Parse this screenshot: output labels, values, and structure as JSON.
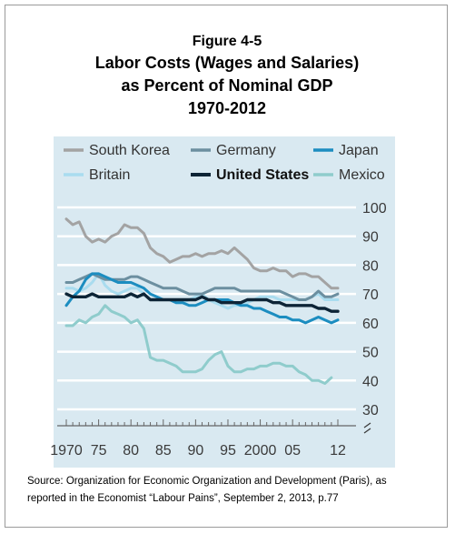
{
  "figure": {
    "number": "Figure 4-5",
    "title_line1": "Labor Costs (Wages and Salaries)",
    "title_line2": "as Percent of Nominal GDP",
    "title_line3": "1970-2012"
  },
  "source_note": {
    "line1": "Source: Organization for Economic Organization and Development (Paris), as",
    "line2": "reported in the Economist “Labour Pains”, September 2, 2013, p.77"
  },
  "colors": {
    "panel_bg": "#d9e9f1",
    "grid": "#ffffff",
    "axis_text": "#3a3a3a"
  },
  "chart_data": {
    "type": "line",
    "x_tick_labels": [
      "1970",
      "75",
      "80",
      "85",
      "90",
      "95",
      "2000",
      "05",
      "12"
    ],
    "x_tick_values": [
      1970,
      1975,
      1980,
      1985,
      1990,
      1995,
      2000,
      2005,
      2012
    ],
    "y_tick_labels": [
      "100",
      "90",
      "80",
      "70",
      "60",
      "50",
      "40",
      "30"
    ],
    "y_tick_values": [
      100,
      90,
      80,
      70,
      60,
      50,
      40,
      30
    ],
    "ylim": [
      30,
      100
    ],
    "xlim": [
      1970,
      2012
    ],
    "y_axis_break": true,
    "grid": "horizontal",
    "legend_position": "top",
    "series": [
      {
        "name": "South Korea",
        "color": "#a3a3a3",
        "bold": false,
        "x": [
          1970,
          1971,
          1972,
          1973,
          1974,
          1975,
          1976,
          1977,
          1978,
          1979,
          1980,
          1981,
          1982,
          1983,
          1984,
          1985,
          1986,
          1987,
          1988,
          1989,
          1990,
          1991,
          1992,
          1993,
          1994,
          1995,
          1996,
          1997,
          1998,
          1999,
          2000,
          2001,
          2002,
          2003,
          2004,
          2005,
          2006,
          2007,
          2008,
          2009,
          2010,
          2011,
          2012
        ],
        "y": [
          96,
          94,
          95,
          90,
          88,
          89,
          88,
          90,
          91,
          94,
          93,
          93,
          91,
          86,
          84,
          83,
          81,
          82,
          83,
          83,
          84,
          83,
          84,
          84,
          85,
          84,
          86,
          84,
          82,
          79,
          78,
          78,
          79,
          78,
          78,
          76,
          77,
          77,
          76,
          76,
          74,
          72,
          72
        ]
      },
      {
        "name": "Germany",
        "color": "#6c8fa0",
        "bold": false,
        "x": [
          1970,
          1971,
          1972,
          1973,
          1974,
          1975,
          1976,
          1977,
          1978,
          1979,
          1980,
          1981,
          1982,
          1983,
          1984,
          1985,
          1986,
          1987,
          1988,
          1989,
          1990,
          1991,
          1992,
          1993,
          1994,
          1995,
          1996,
          1997,
          1998,
          1999,
          2000,
          2001,
          2002,
          2003,
          2004,
          2005,
          2006,
          2007,
          2008,
          2009,
          2010,
          2011,
          2012
        ],
        "y": [
          74,
          74,
          75,
          76,
          77,
          76,
          75,
          75,
          75,
          75,
          76,
          76,
          75,
          74,
          73,
          72,
          72,
          72,
          71,
          70,
          70,
          70,
          71,
          72,
          72,
          72,
          72,
          71,
          71,
          71,
          71,
          71,
          71,
          71,
          70,
          69,
          68,
          68,
          69,
          71,
          69,
          69,
          70
        ]
      },
      {
        "name": "Japan",
        "color": "#1c8dc0",
        "bold": false,
        "x": [
          1970,
          1971,
          1972,
          1973,
          1974,
          1975,
          1976,
          1977,
          1978,
          1979,
          1980,
          1981,
          1982,
          1983,
          1984,
          1985,
          1986,
          1987,
          1988,
          1989,
          1990,
          1991,
          1992,
          1993,
          1994,
          1995,
          1996,
          1997,
          1998,
          1999,
          2000,
          2001,
          2002,
          2003,
          2004,
          2005,
          2006,
          2007,
          2008,
          2009,
          2010,
          2011,
          2012
        ],
        "y": [
          66,
          69,
          71,
          75,
          77,
          77,
          76,
          75,
          74,
          74,
          74,
          73,
          72,
          70,
          69,
          68,
          68,
          67,
          67,
          66,
          66,
          67,
          68,
          68,
          68,
          68,
          67,
          66,
          66,
          65,
          65,
          64,
          63,
          62,
          62,
          61,
          61,
          60,
          61,
          62,
          61,
          60,
          61
        ]
      },
      {
        "name": "Britain",
        "color": "#a9dcef",
        "bold": false,
        "x": [
          1970,
          1971,
          1972,
          1973,
          1974,
          1975,
          1976,
          1977,
          1978,
          1979,
          1980,
          1981,
          1982,
          1983,
          1984,
          1985,
          1986,
          1987,
          1988,
          1989,
          1990,
          1991,
          1992,
          1993,
          1994,
          1995,
          1996,
          1997,
          1998,
          1999,
          2000,
          2001,
          2002,
          2003,
          2004,
          2005,
          2006,
          2007,
          2008,
          2009,
          2010,
          2011,
          2012
        ],
        "y": [
          72,
          72,
          71,
          72,
          74,
          77,
          73,
          71,
          70,
          71,
          72,
          72,
          70,
          68,
          68,
          68,
          68,
          67,
          67,
          68,
          69,
          70,
          68,
          67,
          66,
          65,
          66,
          66,
          67,
          68,
          69,
          69,
          69,
          68,
          68,
          68,
          68,
          68,
          69,
          70,
          68,
          68,
          68
        ]
      },
      {
        "name": "United States",
        "color": "#0d2436",
        "bold": true,
        "x": [
          1970,
          1971,
          1972,
          1973,
          1974,
          1975,
          1976,
          1977,
          1978,
          1979,
          1980,
          1981,
          1982,
          1983,
          1984,
          1985,
          1986,
          1987,
          1988,
          1989,
          1990,
          1991,
          1992,
          1993,
          1994,
          1995,
          1996,
          1997,
          1998,
          1999,
          2000,
          2001,
          2002,
          2003,
          2004,
          2005,
          2006,
          2007,
          2008,
          2009,
          2010,
          2011,
          2012
        ],
        "y": [
          70,
          69,
          69,
          69,
          70,
          69,
          69,
          69,
          69,
          69,
          70,
          69,
          70,
          68,
          68,
          68,
          68,
          68,
          68,
          68,
          68,
          69,
          68,
          68,
          67,
          67,
          67,
          67,
          68,
          68,
          68,
          68,
          67,
          67,
          66,
          66,
          66,
          66,
          66,
          65,
          65,
          64,
          64
        ]
      },
      {
        "name": "Mexico",
        "color": "#8fcccc",
        "bold": false,
        "x": [
          1970,
          1971,
          1972,
          1973,
          1974,
          1975,
          1976,
          1977,
          1978,
          1979,
          1980,
          1981,
          1982,
          1983,
          1984,
          1985,
          1986,
          1987,
          1988,
          1989,
          1990,
          1991,
          1992,
          1993,
          1994,
          1995,
          1996,
          1997,
          1998,
          1999,
          2000,
          2001,
          2002,
          2003,
          2004,
          2005,
          2006,
          2007,
          2008,
          2009,
          2010,
          2011,
          2012
        ],
        "y": [
          59,
          59,
          61,
          60,
          62,
          63,
          66,
          64,
          63,
          62,
          60,
          61,
          58,
          48,
          47,
          47,
          46,
          45,
          43,
          43,
          43,
          44,
          47,
          49,
          50,
          45,
          43,
          43,
          44,
          44,
          45,
          45,
          46,
          46,
          45,
          45,
          43,
          42,
          40,
          40,
          39,
          41,
          null
        ]
      }
    ]
  }
}
